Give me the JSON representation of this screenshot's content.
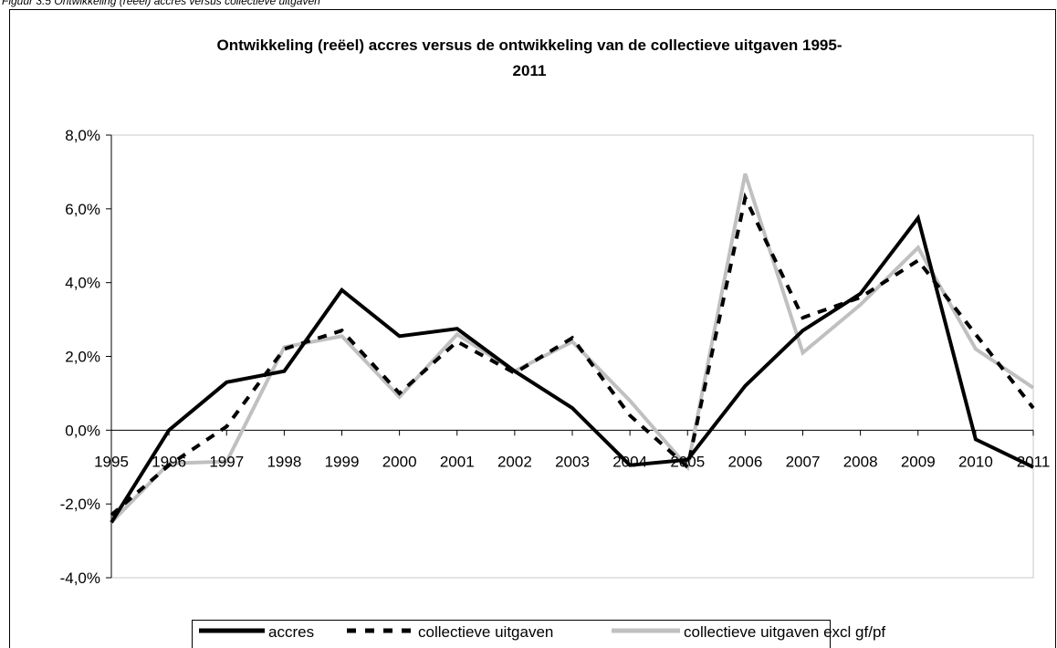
{
  "caption": "Figuur 3.5 Ontwikkeling (reëel) accres versus collectieve uitgaven",
  "chart_data": {
    "type": "line",
    "title": "Ontwikkeling (reëel) accres versus de ontwikkeling van de collectieve uitgaven 1995-2011",
    "title_lines": [
      "Ontwikkeling (reëel) accres versus de ontwikkeling van de collectieve uitgaven 1995-",
      "2011"
    ],
    "x": [
      "1995",
      "1996",
      "1997",
      "1998",
      "1999",
      "2000",
      "2001",
      "2002",
      "2003",
      "2004",
      "2005",
      "2006",
      "2007",
      "2008",
      "2009",
      "2010",
      "2011"
    ],
    "ylim": [
      -4.0,
      8.0
    ],
    "yticks": [
      -4.0,
      -2.0,
      0.0,
      2.0,
      4.0,
      6.0,
      8.0
    ],
    "ytick_labels": [
      "-4,0%",
      "-2,0%",
      "0,0%",
      "2,0%",
      "4,0%",
      "6,0%",
      "8,0%"
    ],
    "grid": false,
    "legend_position": "bottom",
    "series": [
      {
        "name": "accres",
        "color": "#000000",
        "dash": "solid",
        "values": [
          -2.5,
          0.0,
          1.3,
          1.6,
          3.8,
          2.55,
          2.75,
          1.6,
          0.6,
          -0.95,
          -0.8,
          1.2,
          2.7,
          3.7,
          5.75,
          -0.25,
          -1.0
        ]
      },
      {
        "name": "collectieve uitgaven",
        "color": "#000000",
        "dash": "dashed",
        "values": [
          -2.3,
          -0.95,
          0.1,
          2.2,
          2.7,
          1.0,
          2.4,
          1.55,
          2.5,
          0.4,
          -1.0,
          6.3,
          3.05,
          3.6,
          4.6,
          2.6,
          0.6
        ]
      },
      {
        "name": "collectieve uitgaven excl gf/pf",
        "color": "#c0c0c0",
        "dash": "solid",
        "values": [
          -2.5,
          -0.9,
          -0.85,
          2.25,
          2.55,
          0.9,
          2.6,
          1.6,
          2.4,
          0.8,
          -1.0,
          6.95,
          2.1,
          3.4,
          4.95,
          2.2,
          1.15
        ]
      }
    ]
  }
}
